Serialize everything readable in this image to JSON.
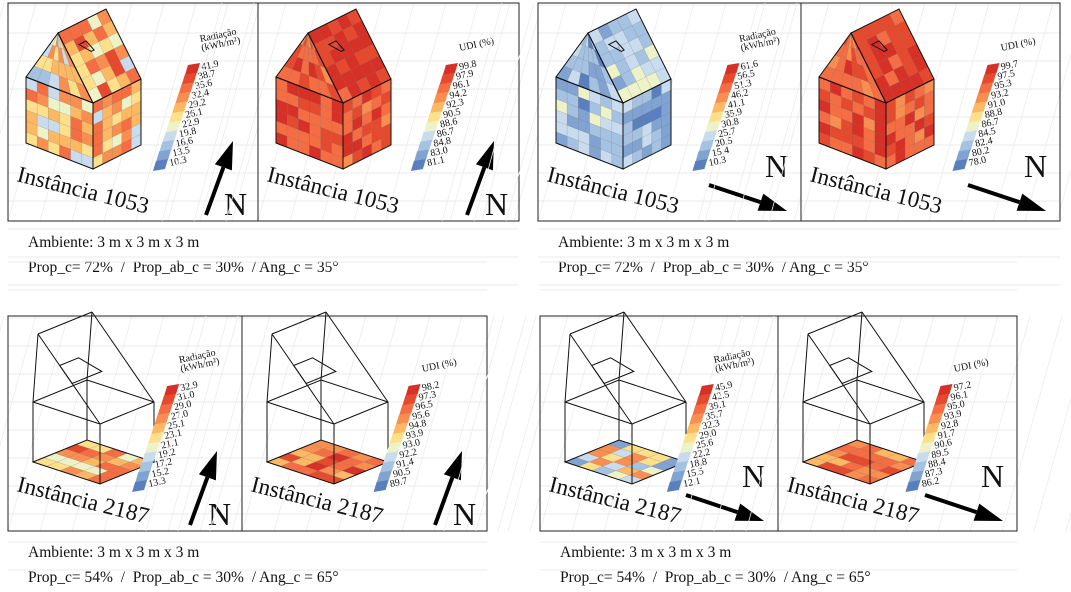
{
  "panels": [
    {
      "images": [
        {
          "legend_title": [
            "Radiação",
            "(kWh/m²)"
          ],
          "legend_values": [
            "41.9",
            "38.7",
            "35.6",
            "32.4",
            "29.2",
            "26.1",
            "22.9",
            "19.8",
            "16.6",
            "13.5",
            "10.3"
          ],
          "instance": "Instância 1053",
          "north": "N"
        },
        {
          "legend_title": [
            "UDI (%)"
          ],
          "legend_values": [
            "99.8",
            "97.9",
            "96.1",
            "94.2",
            "92.3",
            "90.5",
            "88.6",
            "86.7",
            "84.8",
            "83.0",
            "81.1"
          ],
          "instance": "Instância 1053",
          "north": "N"
        }
      ],
      "caption": [
        "Ambiente: 3 m x 3 m x 3 m",
        "Prop_c= 72%  /  Prop_ab_c = 30%  / Ang_c = 35°"
      ]
    },
    {
      "images": [
        {
          "legend_title": [
            "Radiação",
            "(kWh/m²)"
          ],
          "legend_values": [
            "61.6",
            "56.5",
            "51.3",
            "46.2",
            "41.1",
            "35.9",
            "30.8",
            "25.7",
            "20.5",
            "15.4",
            "10.3"
          ],
          "instance": "Instância 1053",
          "north": "N"
        },
        {
          "legend_title": [
            "UDI (%)"
          ],
          "legend_values": [
            "99.7",
            "97.5",
            "95.3",
            "93.2",
            "91.0",
            "88.8",
            "86.7",
            "84.5",
            "82.4",
            "80.2",
            "78.0"
          ],
          "instance": "Instância 1053",
          "north": "N"
        }
      ],
      "caption": [
        "Ambiente: 3 m x 3 m x 3 m",
        "Prop_c= 72%  /  Prop_ab_c = 30%  / Ang_c = 35°"
      ]
    },
    {
      "images": [
        {
          "legend_title": [
            "Radiação",
            "(kWh/m²)"
          ],
          "legend_values": [
            "32.9",
            "31.0",
            "29.0",
            "27.0",
            "25.1",
            "23.1",
            "21.1",
            "19.2",
            "17.2",
            "15.2",
            "13.3"
          ],
          "instance": "Instância 2187",
          "north": "N"
        },
        {
          "legend_title": [
            "UDI (%)"
          ],
          "legend_values": [
            "98.2",
            "97.3",
            "96.5",
            "95.6",
            "94.8",
            "93.9",
            "93.0",
            "92.2",
            "91.4",
            "90.5",
            "89.7"
          ],
          "instance": "Instância 2187",
          "north": "N"
        }
      ],
      "caption": [
        "Ambiente: 3 m x 3 m x 3 m",
        "Prop_c= 54%  /  Prop_ab_c = 30%  / Ang_c = 65°"
      ]
    },
    {
      "images": [
        {
          "legend_title": [
            "Radiação",
            "(kWh/m²)"
          ],
          "legend_values": [
            "45.9",
            "42.5",
            "39.1",
            "35.7",
            "32.3",
            "29.0",
            "25.6",
            "22.2",
            "18.8",
            "15.5",
            "12.1"
          ],
          "instance": "Instância 2187",
          "north": "N"
        },
        {
          "legend_title": [
            "UDI (%)"
          ],
          "legend_values": [
            "97.2",
            "96.1",
            "95.0",
            "93.9",
            "92.8",
            "91.7",
            "90.6",
            "89.5",
            "88.4",
            "87.3",
            "86.2"
          ],
          "instance": "Instância 2187",
          "north": "N"
        }
      ],
      "caption": [
        "Ambiente: 3 m x 3 m x 3 m",
        "Prop_c= 54%  /  Prop_ab_c = 30%  / Ang_c = 65°"
      ]
    }
  ]
}
